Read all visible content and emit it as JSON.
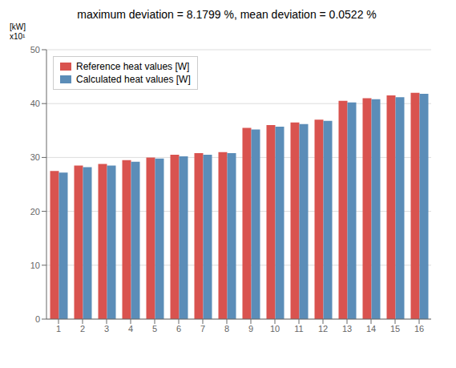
{
  "chart_data": {
    "type": "bar",
    "title": "maximum deviation = 8.1799 %, mean deviation = 0.0522 %",
    "categories": [
      "1",
      "2",
      "3",
      "4",
      "5",
      "6",
      "7",
      "8",
      "9",
      "10",
      "11",
      "12",
      "13",
      "14",
      "15",
      "16"
    ],
    "series": [
      {
        "name": "Reference heat values [W]",
        "color": "#d9534f",
        "values": [
          27.5,
          28.5,
          28.8,
          29.5,
          30.0,
          30.5,
          30.8,
          31.0,
          35.5,
          36.0,
          36.5,
          37.0,
          40.5,
          41.0,
          41.5,
          42.0
        ]
      },
      {
        "name": "Calculated heat values [W]",
        "color": "#5b8db8",
        "values": [
          27.2,
          28.2,
          28.5,
          29.2,
          29.8,
          30.2,
          30.5,
          30.8,
          35.2,
          35.7,
          36.2,
          36.8,
          40.2,
          40.8,
          41.2,
          41.8
        ]
      }
    ],
    "ylim": [
      0,
      50
    ],
    "yticks": [
      0,
      10,
      20,
      30,
      40,
      50
    ],
    "grid": true,
    "legend": "upper left",
    "annotations": [
      "[kW]\nx10¹"
    ]
  }
}
